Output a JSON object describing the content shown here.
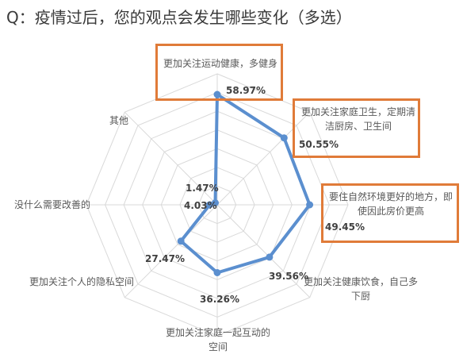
{
  "title": "Q：疫情过后，您的观点会发生哪些变化（多选）",
  "colors": {
    "series": "#5b8fcf",
    "grid": "#d9d9d9",
    "highlight": "#e07b39"
  },
  "chart_data": {
    "type": "radar",
    "title": "Q：疫情过后，您的观点会发生哪些变化（多选）",
    "unit": "%",
    "range": [
      0,
      70
    ],
    "categories": [
      "更加关注运动健康，多健身",
      "更加关注家庭卫生，定期清洁厨房、卫生间",
      "要住自然环境更好的地方，即使因此房价更高",
      "更加关注健康饮食，自己多下厨",
      "更加关注家庭一起互动的空间",
      "更加关注个人的隐私空间",
      "没什么需要改善的",
      "其他"
    ],
    "values": [
      58.97,
      50.55,
      49.45,
      39.56,
      36.26,
      27.47,
      4.03,
      1.47
    ],
    "value_labels": [
      "58.97%",
      "50.55%",
      "49.45%",
      "39.56%",
      "36.26%",
      "27.47%",
      "4.03%",
      "1.47%"
    ],
    "highlighted_categories": [
      0,
      1,
      2
    ]
  }
}
